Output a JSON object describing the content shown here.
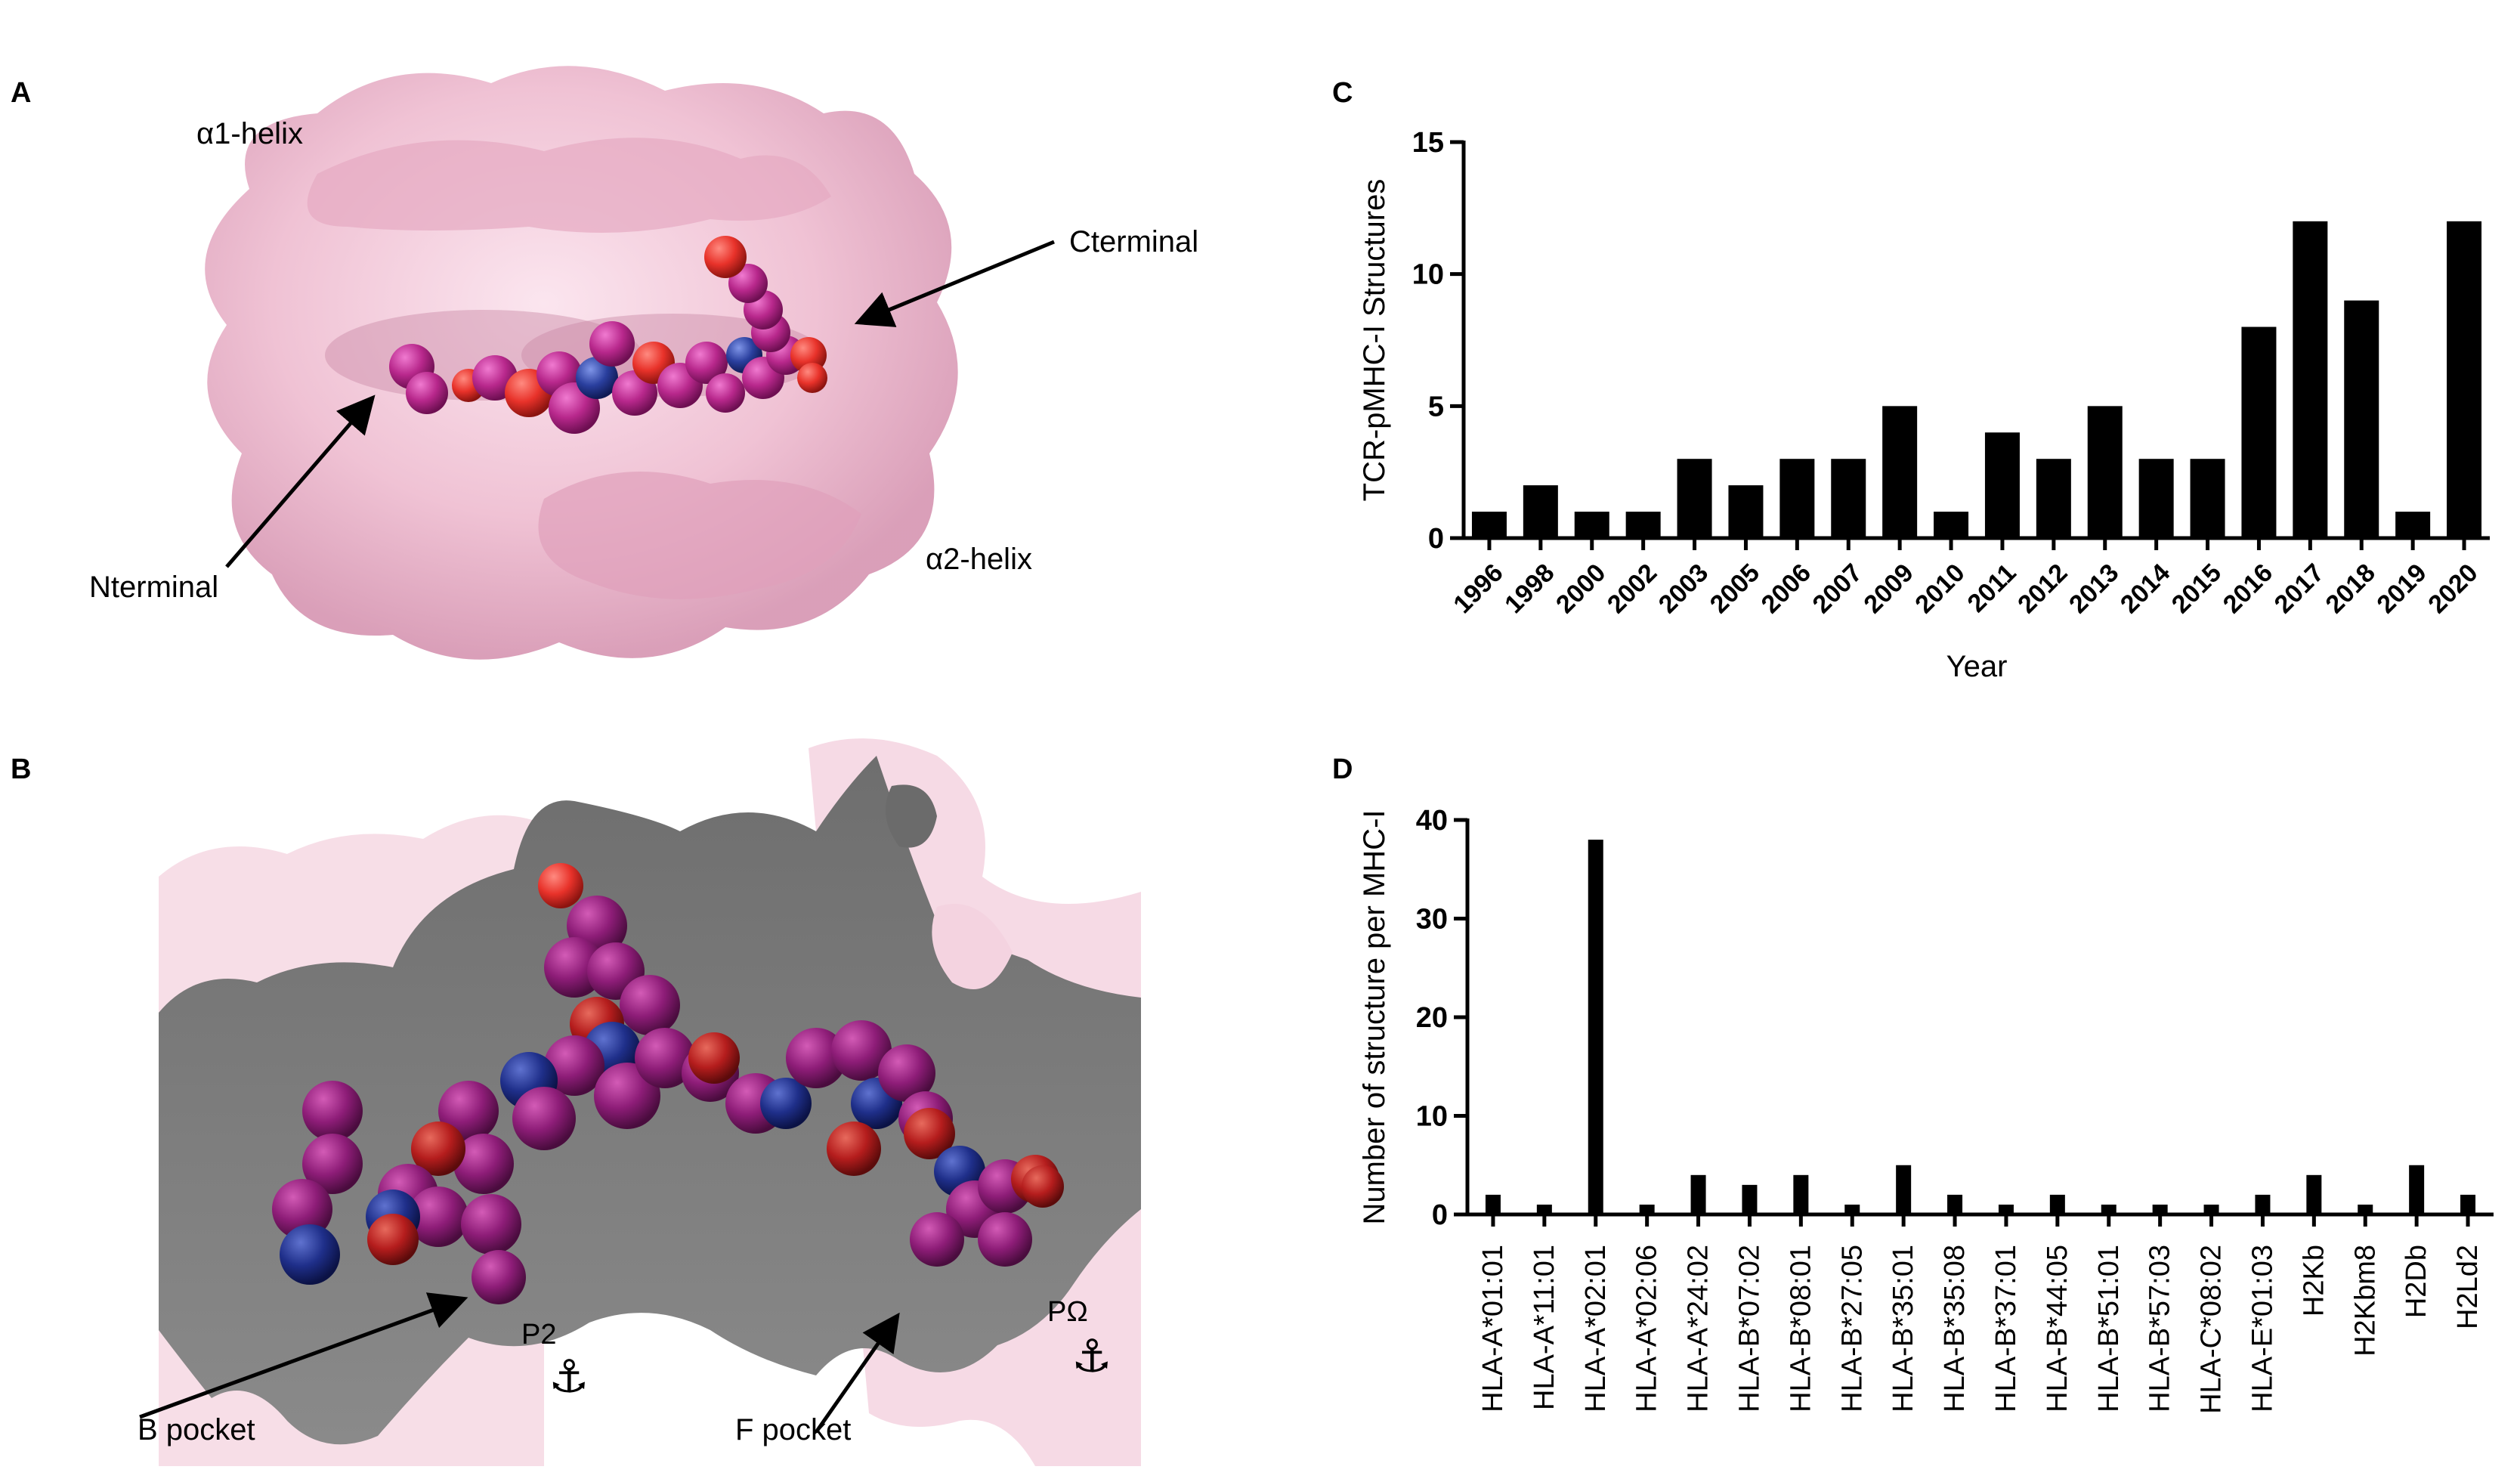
{
  "panels": {
    "a": {
      "letter": "A",
      "labels": {
        "a1_helix": "α1-helix",
        "a2_helix": "α2-helix",
        "cterminal": "Cterminal",
        "nterminal": "Nterminal"
      },
      "colors": {
        "surface": "#f2c4d6",
        "carbon": "#b8288c",
        "oxygen": "#e8322a",
        "nitrogen": "#2a3f9e"
      }
    },
    "b": {
      "letter": "B",
      "labels": {
        "b_pocket": "B pocket",
        "f_pocket": "F pocket",
        "p2": "P2",
        "pomega": "PΩ",
        "anchor": "⚓"
      },
      "colors": {
        "cavity": "#7f7f7f",
        "carbon": "#8e1d78",
        "oxygen": "#b51d1d",
        "nitrogen": "#1f2f8a"
      }
    },
    "c": {
      "letter": "C"
    },
    "d": {
      "letter": "D"
    }
  },
  "chart_data": [
    {
      "id": "C",
      "type": "bar",
      "categories": [
        "1996",
        "1998",
        "2000",
        "2002",
        "2003",
        "2005",
        "2006",
        "2007",
        "2009",
        "2010",
        "2011",
        "2012",
        "2013",
        "2014",
        "2015",
        "2016",
        "2017",
        "2018",
        "2019",
        "2020"
      ],
      "values": [
        1,
        2,
        1,
        1,
        3,
        2,
        3,
        3,
        5,
        1,
        4,
        3,
        5,
        3,
        3,
        8,
        12,
        9,
        1,
        12
      ],
      "ylabel": "TCR-pMHC-I Structures",
      "xlabel": "Year",
      "ylim": [
        0,
        15
      ],
      "yticks": [
        0,
        5,
        10,
        15
      ],
      "bar_color": "#000000",
      "grid": false
    },
    {
      "id": "D",
      "type": "bar",
      "categories": [
        "HLA-A*01:01",
        "HLA-A*11:01",
        "HLA-A*02:01",
        "HLA-A*02:06",
        "HLA-A*24:02",
        "HLA-B*07:02",
        "HLA-B*08:01",
        "HLA-B*27:05",
        "HLA-B*35:01",
        "HLA-B*35:08",
        "HLA-B*37:01",
        "HLA-B*44:05",
        "HLA-B*51:01",
        "HLA-B*57:03",
        "HLA-C*08:02",
        "HLA-E*01:03",
        "H2Kb",
        "H2Kbm8",
        "H2Db",
        "H2Ld2"
      ],
      "values": [
        2,
        1,
        38,
        1,
        4,
        3,
        4,
        1,
        5,
        2,
        1,
        2,
        1,
        1,
        1,
        2,
        4,
        1,
        5,
        2
      ],
      "ylabel": "Number of structure per MHC-I",
      "xlabel": "",
      "ylim": [
        0,
        40
      ],
      "yticks": [
        0,
        10,
        20,
        30,
        40
      ],
      "bar_color": "#000000",
      "grid": false
    }
  ]
}
